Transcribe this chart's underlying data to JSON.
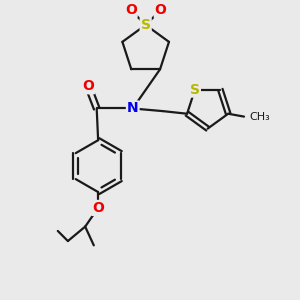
{
  "bg_color": "#eaeaea",
  "bond_color": "#1a1a1a",
  "S_color": "#b8b800",
  "N_color": "#0000ee",
  "O_color": "#ee0000",
  "line_width": 1.6,
  "figsize": [
    3.0,
    3.0
  ],
  "dpi": 100,
  "xlim": [
    0,
    10
  ],
  "ylim": [
    0,
    10
  ]
}
